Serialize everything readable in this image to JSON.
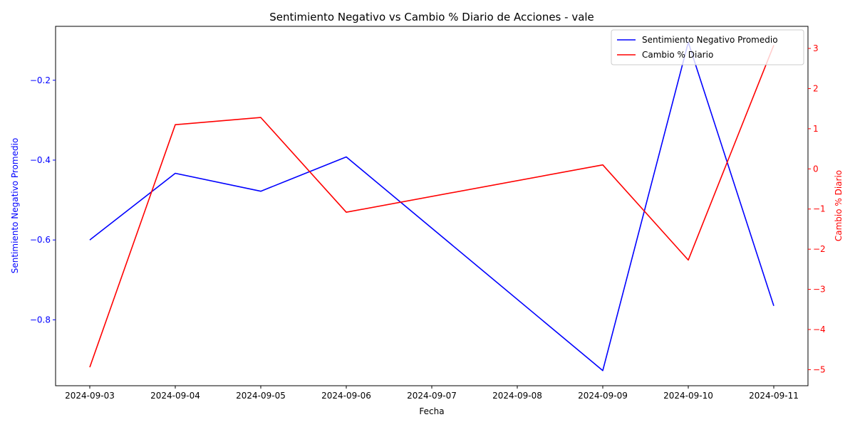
{
  "chart_data": {
    "type": "line",
    "title": "Sentimiento Negativo vs Cambio % Diario de Acciones - vale",
    "xlabel": "Fecha",
    "ylabel_left": "Sentimiento Negativo Promedio",
    "ylabel_right": "Cambio % Diario",
    "x_ticks": [
      "2024-09-03",
      "2024-09-04",
      "2024-09-05",
      "2024-09-06",
      "2024-09-07",
      "2024-09-08",
      "2024-09-09",
      "2024-09-10",
      "2024-09-11"
    ],
    "ylim_left": [
      -0.965,
      -0.065
    ],
    "yticks_left": [
      -0.8,
      -0.6,
      -0.4,
      -0.2
    ],
    "yticks_left_labels": [
      "−0.8",
      "−0.6",
      "−0.4",
      "−0.2"
    ],
    "ylim_right": [
      -5.4,
      3.55
    ],
    "yticks_right": [
      -5,
      -4,
      -3,
      -2,
      -1,
      0,
      1,
      2,
      3
    ],
    "yticks_right_labels": [
      "−5",
      "−4",
      "−3",
      "−2",
      "−1",
      "0",
      "1",
      "2",
      "3"
    ],
    "grid": false,
    "legend_position": "top-right",
    "series": [
      {
        "name": "Sentimiento Negativo Promedio",
        "axis": "left",
        "color": "#0000ff",
        "x": [
          "2024-09-03",
          "2024-09-04",
          "2024-09-05",
          "2024-09-06",
          "2024-09-09",
          "2024-09-10",
          "2024-09-11"
        ],
        "values": [
          -0.6,
          -0.433,
          -0.478,
          -0.392,
          -0.927,
          -0.105,
          -0.765
        ]
      },
      {
        "name": "Cambio % Diario",
        "axis": "right",
        "color": "#ff0000",
        "x": [
          "2024-09-03",
          "2024-09-04",
          "2024-09-05",
          "2024-09-06",
          "2024-09-09",
          "2024-09-10",
          "2024-09-11"
        ],
        "values": [
          -4.94,
          1.1,
          1.28,
          -1.08,
          0.1,
          -2.27,
          3.08
        ]
      }
    ]
  }
}
